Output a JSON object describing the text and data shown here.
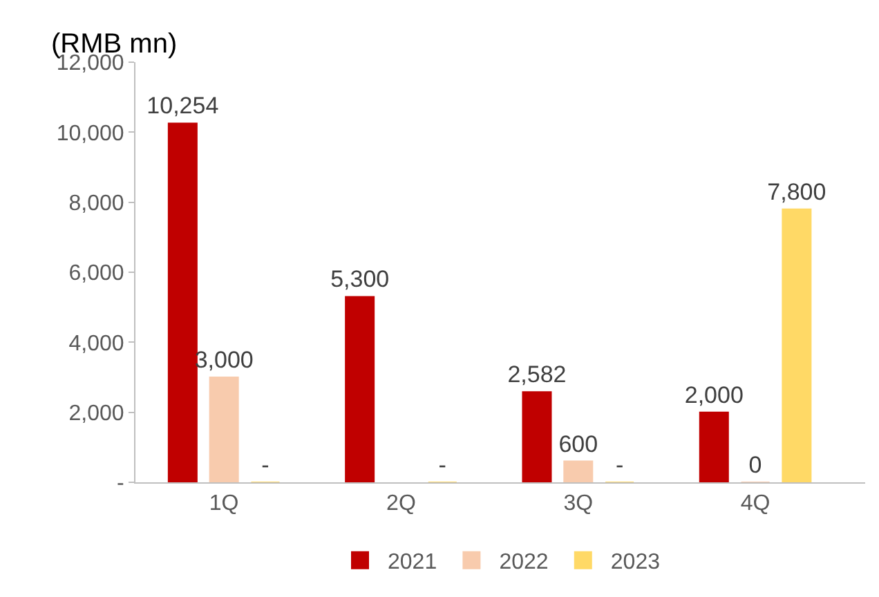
{
  "chart_data": {
    "type": "bar",
    "ylabel": "(RMB mn)",
    "categories": [
      "1Q",
      "2Q",
      "3Q",
      "4Q"
    ],
    "series": [
      {
        "name": "2021",
        "color": "#c00000",
        "values": [
          10254,
          5300,
          2582,
          2000
        ],
        "value_labels": [
          "10,254",
          "5,300",
          "2,582",
          "2,000"
        ]
      },
      {
        "name": "2022",
        "color": "#f8cbad",
        "values": [
          3000,
          null,
          600,
          0
        ],
        "value_labels": [
          "3,000",
          null,
          "600",
          "0"
        ]
      },
      {
        "name": "2023",
        "color": "#ffd966",
        "values": [
          0,
          0,
          0,
          7800
        ],
        "value_labels": [
          "-",
          "-",
          "-",
          "7,800"
        ]
      }
    ],
    "ylim": [
      0,
      12000
    ],
    "yticks": [
      {
        "value": 0,
        "label": "-"
      },
      {
        "value": 2000,
        "label": "2,000"
      },
      {
        "value": 4000,
        "label": "4,000"
      },
      {
        "value": 6000,
        "label": "6,000"
      },
      {
        "value": 8000,
        "label": "8,000"
      },
      {
        "value": 10000,
        "label": "10,000"
      },
      {
        "value": 12000,
        "label": "12,000"
      }
    ],
    "legend": "bottom"
  }
}
